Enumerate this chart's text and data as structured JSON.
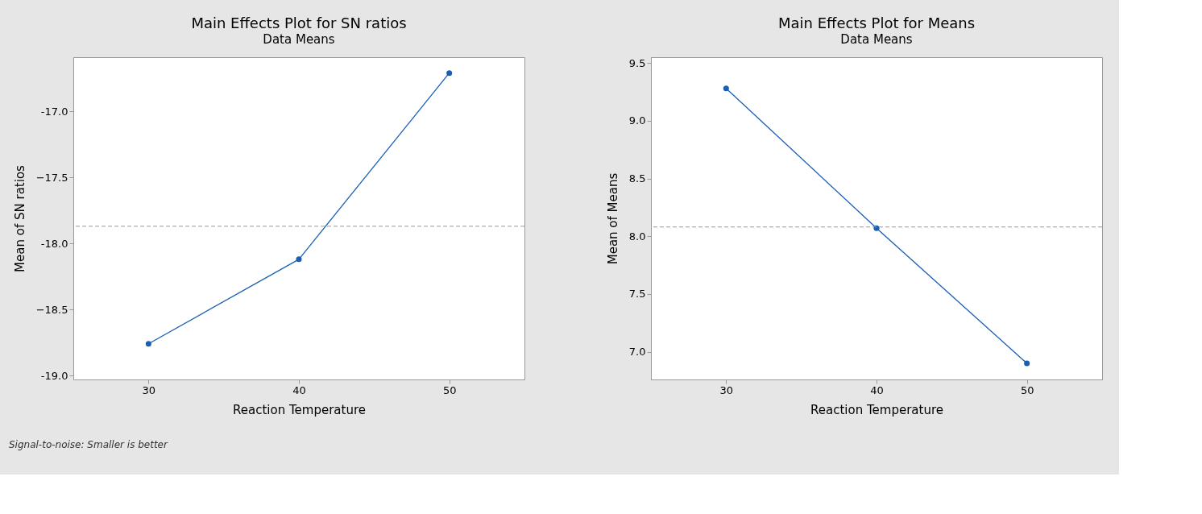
{
  "chart_data": [
    {
      "type": "line",
      "title": "Main Effects Plot for SN ratios",
      "subtitle": "Data Means",
      "xlabel": "Reaction Temperature",
      "ylabel": "Mean of SN ratios",
      "x": [
        30,
        40,
        50
      ],
      "series": [
        {
          "color": "#1a5fb4",
          "values": [
            -18.76,
            -18.12,
            -16.71
          ]
        }
      ],
      "xlim": [
        25,
        55
      ],
      "xticks": [
        30,
        40,
        50
      ],
      "ylim": [
        -19.03,
        -16.59
      ],
      "yticks": [
        {
          "value": -19,
          "label": "-19.0"
        },
        -18.5,
        {
          "value": -18,
          "label": "-18.0"
        },
        -17.5,
        {
          "value": -17,
          "label": "-17.0"
        }
      ],
      "ref_lines": [
        {
          "axis": "y",
          "value": -17.87,
          "color": "#999999",
          "line_style": "dashed"
        }
      ],
      "annotations": [
        "Signal-to-noise: Smaller is better"
      ],
      "marker": "circle",
      "line_style": "solid",
      "grid": false
    },
    {
      "type": "line",
      "title": "Main Effects Plot for Means",
      "subtitle": "Data Means",
      "xlabel": "Reaction Temperature",
      "ylabel": "Mean of Means",
      "x": [
        30,
        40,
        50
      ],
      "series": [
        {
          "color": "#1a5fb4",
          "values": [
            9.28,
            8.07,
            6.9
          ]
        }
      ],
      "xlim": [
        25,
        55
      ],
      "xticks": [
        30,
        40,
        50
      ],
      "ylim": [
        6.76,
        9.55
      ],
      "yticks": [
        {
          "value": 7,
          "label": "7.0"
        },
        7.5,
        {
          "value": 8,
          "label": "8.0"
        },
        8.5,
        {
          "value": 9,
          "label": "9.0"
        },
        9.5
      ],
      "ref_lines": [
        {
          "axis": "y",
          "value": 8.08,
          "color": "#999999",
          "line_style": "dashed"
        }
      ],
      "marker": "circle",
      "line_style": "solid",
      "grid": false
    }
  ]
}
